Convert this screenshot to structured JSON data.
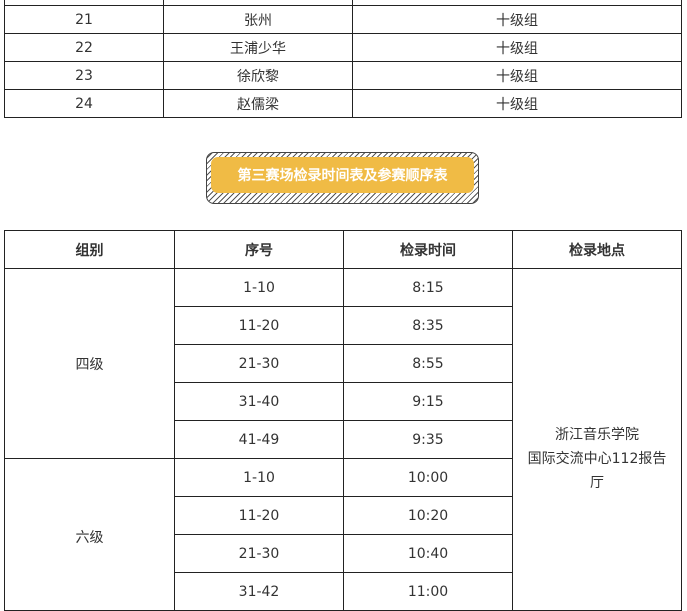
{
  "table1": {
    "rows": [
      {
        "no": "",
        "name": "",
        "group": ""
      },
      {
        "no": "21",
        "name": "张州",
        "group": "十级组"
      },
      {
        "no": "22",
        "name": "王浦少华",
        "group": "十级组"
      },
      {
        "no": "23",
        "name": "徐欣黎",
        "group": "十级组"
      },
      {
        "no": "24",
        "name": "赵儒梁",
        "group": "十级组"
      }
    ]
  },
  "banner": {
    "title": "第三赛场检录时间表及参赛顺序表",
    "color": "#f0bb45"
  },
  "table2": {
    "headers": [
      "组别",
      "序号",
      "检录时间",
      "检录地点"
    ],
    "location_lines": [
      "浙江音乐学院",
      "国际交流中心112报告",
      "厅"
    ],
    "groups": [
      {
        "name": "四级",
        "rows": [
          [
            "1-10",
            "8:15"
          ],
          [
            "11-20",
            "8:35"
          ],
          [
            "21-30",
            "8:55"
          ],
          [
            "31-40",
            "9:15"
          ],
          [
            "41-49",
            "9:35"
          ]
        ]
      },
      {
        "name": "六级",
        "rows": [
          [
            "1-10",
            "10:00"
          ],
          [
            "11-20",
            "10:20"
          ],
          [
            "21-30",
            "10:40"
          ],
          [
            "31-42",
            "11:00"
          ]
        ]
      }
    ]
  }
}
